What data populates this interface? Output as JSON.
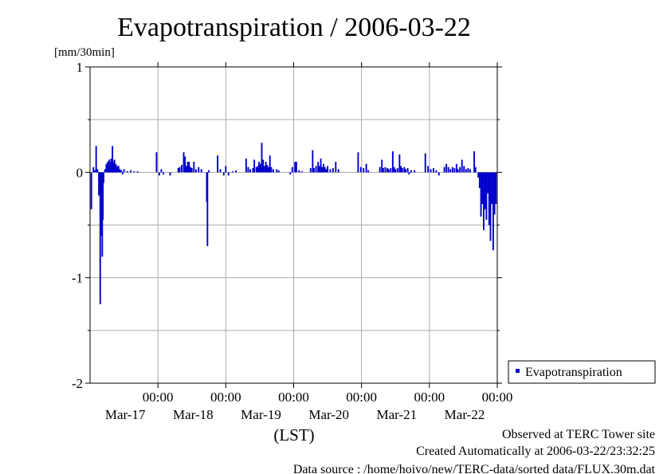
{
  "title": "Evapotranspiration / 2006-03-22",
  "unit_label": "[mm/30min]",
  "footer": {
    "line1": "Observed at TERC Tower site",
    "line2": "Created Automatically at 2006-03-22/23:32:25",
    "line3": "Data source : /home/hoivo/new/TERC-data/sorted  data/FLUX.30m.dat"
  },
  "colors": {
    "series": "#0000cc",
    "grid": "#aaaaaa",
    "axis": "#000000"
  },
  "chart_data": {
    "type": "bar",
    "title": "Evapotranspiration / 2006-03-22",
    "ylabel": "[mm/30min]",
    "xlabel": "(LST)",
    "ylim": [
      -2,
      1
    ],
    "yticks": [
      -2,
      -1,
      0,
      1
    ],
    "x_major_ticks": [
      {
        "time": "00:00",
        "date": "Mar-17"
      },
      {
        "time": "00:00",
        "date": "Mar-18"
      },
      {
        "time": "00:00",
        "date": "Mar-19"
      },
      {
        "time": "00:00",
        "date": "Mar-20"
      },
      {
        "time": "00:00",
        "date": "Mar-21"
      },
      {
        "time": "00:00",
        "date": "Mar-22"
      }
    ],
    "x_range_days": [
      -1,
      5
    ],
    "grid": true,
    "legend": {
      "position": "right",
      "entries": [
        "Evapotranspiration"
      ]
    },
    "series": [
      {
        "name": "Evapotranspiration",
        "x_interval": "30min",
        "points": [
          [
            -0.98,
            -0.35
          ],
          [
            -0.95,
            0.05
          ],
          [
            -0.93,
            0.02
          ],
          [
            -0.91,
            0.25
          ],
          [
            -0.89,
            0.03
          ],
          [
            -0.87,
            -0.22
          ],
          [
            -0.85,
            -1.25
          ],
          [
            -0.84,
            -0.6
          ],
          [
            -0.83,
            -0.55
          ],
          [
            -0.82,
            -0.8
          ],
          [
            -0.81,
            -0.45
          ],
          [
            -0.8,
            -0.1
          ],
          [
            -0.78,
            0.03
          ],
          [
            -0.76,
            0.08
          ],
          [
            -0.74,
            0.1
          ],
          [
            -0.73,
            0.06
          ],
          [
            -0.72,
            0.12
          ],
          [
            -0.71,
            0.05
          ],
          [
            -0.7,
            0.1
          ],
          [
            -0.69,
            0.13
          ],
          [
            -0.68,
            0.08
          ],
          [
            -0.67,
            0.25
          ],
          [
            -0.66,
            0.05
          ],
          [
            -0.65,
            0.1
          ],
          [
            -0.64,
            0.12
          ],
          [
            -0.63,
            0.06
          ],
          [
            -0.62,
            0.08
          ],
          [
            -0.61,
            0.04
          ],
          [
            -0.6,
            0.06
          ],
          [
            -0.59,
            0.05
          ],
          [
            -0.58,
            0.06
          ],
          [
            -0.56,
            0.03
          ],
          [
            -0.54,
            0.02
          ],
          [
            -0.52,
            -0.02
          ],
          [
            -0.5,
            0.03
          ],
          [
            -0.45,
            0.01
          ],
          [
            -0.4,
            0.02
          ],
          [
            -0.35,
            0.01
          ],
          [
            -0.3,
            0.01
          ],
          [
            -0.02,
            0.19
          ],
          [
            0.02,
            -0.03
          ],
          [
            0.05,
            0.03
          ],
          [
            0.08,
            -0.02
          ],
          [
            0.18,
            -0.03
          ],
          [
            0.3,
            0.04
          ],
          [
            0.32,
            0.05
          ],
          [
            0.35,
            0.07
          ],
          [
            0.38,
            0.19
          ],
          [
            0.4,
            0.15
          ],
          [
            0.42,
            0.06
          ],
          [
            0.44,
            0.1
          ],
          [
            0.46,
            0.1
          ],
          [
            0.48,
            0.05
          ],
          [
            0.5,
            0.04
          ],
          [
            0.53,
            0.1
          ],
          [
            0.56,
            0.03
          ],
          [
            0.6,
            0.05
          ],
          [
            0.64,
            0.03
          ],
          [
            0.72,
            -0.28
          ],
          [
            0.73,
            -0.7
          ],
          [
            0.75,
            0.02
          ],
          [
            0.88,
            0.16
          ],
          [
            0.92,
            0.03
          ],
          [
            0.97,
            -0.03
          ],
          [
            1.0,
            0.06
          ],
          [
            1.04,
            -0.03
          ],
          [
            1.1,
            0.01
          ],
          [
            1.15,
            0.02
          ],
          [
            1.3,
            0.13
          ],
          [
            1.33,
            0.05
          ],
          [
            1.36,
            0.03
          ],
          [
            1.4,
            0.04
          ],
          [
            1.42,
            0.12
          ],
          [
            1.45,
            0.05
          ],
          [
            1.47,
            0.06
          ],
          [
            1.49,
            0.1
          ],
          [
            1.51,
            0.08
          ],
          [
            1.53,
            0.28
          ],
          [
            1.55,
            0.12
          ],
          [
            1.57,
            0.06
          ],
          [
            1.59,
            0.1
          ],
          [
            1.61,
            0.07
          ],
          [
            1.63,
            0.05
          ],
          [
            1.65,
            0.16
          ],
          [
            1.67,
            0.05
          ],
          [
            1.7,
            0.03
          ],
          [
            1.75,
            0.03
          ],
          [
            1.78,
            0.02
          ],
          [
            1.95,
            -0.02
          ],
          [
            1.98,
            0.05
          ],
          [
            2.02,
            0.1
          ],
          [
            2.04,
            0.1
          ],
          [
            2.08,
            0.02
          ],
          [
            2.12,
            0.01
          ],
          [
            2.25,
            0.04
          ],
          [
            2.28,
            0.21
          ],
          [
            2.3,
            0.04
          ],
          [
            2.33,
            0.06
          ],
          [
            2.36,
            0.1
          ],
          [
            2.38,
            0.06
          ],
          [
            2.4,
            0.13
          ],
          [
            2.42,
            0.05
          ],
          [
            2.44,
            0.08
          ],
          [
            2.46,
            0.05
          ],
          [
            2.48,
            0.03
          ],
          [
            2.5,
            0.06
          ],
          [
            2.54,
            0.03
          ],
          [
            2.58,
            0.04
          ],
          [
            2.62,
            0.1
          ],
          [
            2.66,
            0.03
          ],
          [
            2.95,
            0.19
          ],
          [
            2.99,
            0.05
          ],
          [
            3.03,
            0.04
          ],
          [
            3.07,
            0.08
          ],
          [
            3.1,
            0.02
          ],
          [
            3.27,
            0.05
          ],
          [
            3.3,
            0.12
          ],
          [
            3.32,
            0.04
          ],
          [
            3.35,
            0.05
          ],
          [
            3.38,
            0.04
          ],
          [
            3.4,
            0.03
          ],
          [
            3.43,
            0.04
          ],
          [
            3.46,
            0.2
          ],
          [
            3.48,
            0.05
          ],
          [
            3.5,
            0.03
          ],
          [
            3.53,
            0.04
          ],
          [
            3.56,
            0.17
          ],
          [
            3.58,
            0.06
          ],
          [
            3.6,
            0.04
          ],
          [
            3.63,
            0.05
          ],
          [
            3.65,
            0.03
          ],
          [
            3.68,
            0.04
          ],
          [
            3.7,
            -0.02
          ],
          [
            3.73,
            0.02
          ],
          [
            3.78,
            0.02
          ],
          [
            3.94,
            0.18
          ],
          [
            3.98,
            0.06
          ],
          [
            4.02,
            0.03
          ],
          [
            4.06,
            0.04
          ],
          [
            4.1,
            0.02
          ],
          [
            4.14,
            -0.03
          ],
          [
            4.22,
            0.05
          ],
          [
            4.25,
            0.08
          ],
          [
            4.28,
            0.05
          ],
          [
            4.31,
            0.03
          ],
          [
            4.34,
            0.05
          ],
          [
            4.37,
            0.04
          ],
          [
            4.4,
            0.08
          ],
          [
            4.42,
            0.03
          ],
          [
            4.45,
            0.05
          ],
          [
            4.48,
            0.12
          ],
          [
            4.51,
            0.06
          ],
          [
            4.54,
            0.03
          ],
          [
            4.57,
            0.04
          ],
          [
            4.6,
            0.03
          ],
          [
            4.66,
            0.2
          ],
          [
            4.68,
            0.05
          ],
          [
            4.72,
            -0.05
          ],
          [
            4.74,
            -0.15
          ],
          [
            4.76,
            -0.42
          ],
          [
            4.78,
            -0.3
          ],
          [
            4.8,
            -0.55
          ],
          [
            4.82,
            -0.35
          ],
          [
            4.84,
            -0.45
          ],
          [
            4.86,
            -0.2
          ],
          [
            4.88,
            -0.5
          ],
          [
            4.9,
            -0.65
          ],
          [
            4.92,
            -0.3
          ],
          [
            4.94,
            -0.74
          ],
          [
            4.96,
            -0.4
          ],
          [
            4.98,
            -0.3
          ]
        ]
      }
    ]
  }
}
